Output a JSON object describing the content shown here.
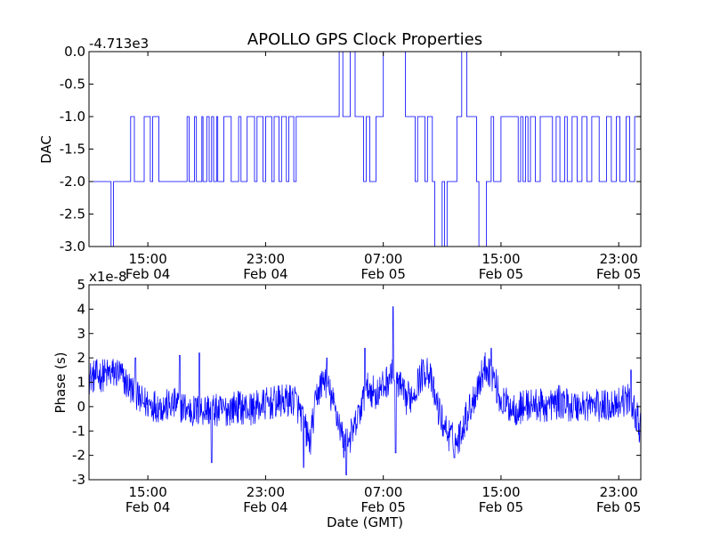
{
  "figure": {
    "title": "APOLLO GPS Clock Properties",
    "line_color": "#0000ff"
  },
  "chart_data": [
    {
      "type": "line",
      "title": "APOLLO GPS Clock Properties",
      "ylabel": "DAC",
      "xlabel": "",
      "offset_label": "-4.713e3",
      "ylim": [
        -3.0,
        0.0
      ],
      "xlim": [
        "Feb 04 11:00",
        "Feb 06 00:30"
      ],
      "yticks": [
        {
          "value": 0.0,
          "label": "0.0"
        },
        {
          "value": -0.5,
          "label": "-0.5"
        },
        {
          "value": -1.0,
          "label": "-1.0"
        },
        {
          "value": -1.5,
          "label": "-1.5"
        },
        {
          "value": -2.0,
          "label": "-2.0"
        },
        {
          "value": -2.5,
          "label": "-2.5"
        },
        {
          "value": -3.0,
          "label": "-3.0"
        }
      ],
      "xticks": [
        {
          "value": "Feb 04 15:00",
          "time": "15:00",
          "date": "Feb 04"
        },
        {
          "value": "Feb 04 23:00",
          "time": "23:00",
          "date": "Feb 04"
        },
        {
          "value": "Feb 05 07:00",
          "time": "07:00",
          "date": "Feb 05"
        },
        {
          "value": "Feb 05 15:00",
          "time": "15:00",
          "date": "Feb 05"
        },
        {
          "value": "Feb 05 23:00",
          "time": "23:00",
          "date": "Feb 05"
        }
      ],
      "series": [
        {
          "style": "step",
          "x": [
            "Feb 04 11:00",
            "Feb 04 12:30",
            "Feb 04 12:40",
            "Feb 04 13:50",
            "Feb 04 14:05",
            "Feb 04 14:45",
            "Feb 04 15:10",
            "Feb 04 15:20",
            "Feb 04 15:45",
            "Feb 04 17:40",
            "Feb 04 17:48",
            "Feb 04 18:10",
            "Feb 04 18:18",
            "Feb 04 18:40",
            "Feb 04 18:45",
            "Feb 04 19:00",
            "Feb 04 19:10",
            "Feb 04 19:20",
            "Feb 04 19:28",
            "Feb 04 19:40",
            "Feb 04 19:45",
            "Feb 04 20:10",
            "Feb 04 20:40",
            "Feb 04 21:10",
            "Feb 04 21:20",
            "Feb 04 21:45",
            "Feb 04 22:15",
            "Feb 04 22:25",
            "Feb 04 22:50",
            "Feb 04 23:00",
            "Feb 04 23:25",
            "Feb 04 23:35",
            "Feb 04 23:55",
            "Feb 05 00:05",
            "Feb 05 00:25",
            "Feb 05 00:35",
            "Feb 05 00:55",
            "Feb 05 01:05",
            "Feb 05 01:30",
            "Feb 05 02:00",
            "Feb 05 02:30",
            "Feb 05 03:10",
            "Feb 05 04:00",
            "Feb 05 04:15",
            "Feb 05 04:30",
            "Feb 05 04:45",
            "Feb 05 05:05",
            "Feb 05 05:40",
            "Feb 05 05:50",
            "Feb 05 06:05",
            "Feb 05 06:30",
            "Feb 05 07:00",
            "Feb 05 08:30",
            "Feb 05 09:10",
            "Feb 05 09:20",
            "Feb 05 09:50",
            "Feb 05 10:00",
            "Feb 05 10:20",
            "Feb 05 10:30",
            "Feb 05 11:00",
            "Feb 05 11:10",
            "Feb 05 11:20",
            "Feb 05 12:00",
            "Feb 05 12:20",
            "Feb 05 12:40",
            "Feb 05 13:20",
            "Feb 05 13:30",
            "Feb 05 14:00",
            "Feb 05 14:20",
            "Feb 05 14:30",
            "Feb 05 15:00",
            "Feb 05 16:10",
            "Feb 05 16:20",
            "Feb 05 16:30",
            "Feb 05 16:40",
            "Feb 05 16:50",
            "Feb 05 17:00",
            "Feb 05 17:20",
            "Feb 05 17:40",
            "Feb 05 18:30",
            "Feb 05 18:45",
            "Feb 05 19:00",
            "Feb 05 19:20",
            "Feb 05 19:30",
            "Feb 05 19:50",
            "Feb 05 20:10",
            "Feb 05 20:30",
            "Feb 05 20:50",
            "Feb 05 21:10",
            "Feb 05 21:40",
            "Feb 05 22:10",
            "Feb 05 22:30",
            "Feb 05 22:50",
            "Feb 05 23:05",
            "Feb 05 23:30",
            "Feb 05 23:45",
            "Feb 06 00:05"
          ],
          "y": [
            -2,
            -3,
            -2,
            -1,
            -2,
            -1,
            -2,
            -1,
            -2,
            -1,
            -2,
            -1,
            -2,
            -1,
            -2,
            -1,
            -2,
            -1,
            -2,
            -1,
            -2,
            -1,
            -2,
            -1,
            -2,
            -1,
            -2,
            -1,
            -2,
            -1,
            -2,
            -1,
            -2,
            -1,
            -2,
            -1,
            -2,
            -1,
            -1,
            -1,
            -1,
            -1,
            0,
            -1,
            -1,
            0,
            -1,
            -2,
            -1,
            -2,
            -1,
            0,
            -1,
            -2,
            -1,
            -2,
            -1,
            -2,
            -3,
            -2,
            -3,
            -2,
            -1,
            0,
            -1,
            -2,
            -3,
            -2,
            -1,
            -2,
            -1,
            -2,
            -1,
            -2,
            -1,
            -2,
            -1,
            -2,
            -1,
            -2,
            -1,
            -2,
            -1,
            -2,
            -1,
            -2,
            -1,
            -2,
            -1,
            -2,
            -1,
            -2,
            -1,
            -2,
            -1,
            -2,
            -1
          ]
        }
      ]
    },
    {
      "type": "line",
      "xlabel": "Date (GMT)",
      "ylabel": "Phase (s)",
      "offset_label": "x1e-8",
      "ylim": [
        -3,
        5
      ],
      "xlim": [
        "Feb 04 11:00",
        "Feb 06 00:30"
      ],
      "yticks": [
        {
          "value": 5,
          "label": "5"
        },
        {
          "value": 4,
          "label": "4"
        },
        {
          "value": 3,
          "label": "3"
        },
        {
          "value": 2,
          "label": "2"
        },
        {
          "value": 1,
          "label": "1"
        },
        {
          "value": 0,
          "label": "0"
        },
        {
          "value": -1,
          "label": "-1"
        },
        {
          "value": -2,
          "label": "-2"
        },
        {
          "value": -3,
          "label": "-3"
        }
      ],
      "xticks": [
        {
          "value": "Feb 04 15:00",
          "time": "15:00",
          "date": "Feb 04"
        },
        {
          "value": "Feb 04 23:00",
          "time": "23:00",
          "date": "Feb 04"
        },
        {
          "value": "Feb 05 07:00",
          "time": "07:00",
          "date": "Feb 05"
        },
        {
          "value": "Feb 05 15:00",
          "time": "15:00",
          "date": "Feb 05"
        },
        {
          "value": "Feb 05 23:00",
          "time": "23:00",
          "date": "Feb 05"
        }
      ],
      "series": [
        {
          "style": "noisy",
          "x": [
            "Feb 04 11:00",
            "Feb 04 12:00",
            "Feb 04 13:00",
            "Feb 04 13:30",
            "Feb 04 14:30",
            "Feb 04 16:00",
            "Feb 04 17:00",
            "Feb 04 18:00",
            "Feb 04 19:00",
            "Feb 04 20:00",
            "Feb 04 21:00",
            "Feb 04 22:00",
            "Feb 04 23:00",
            "Feb 05 00:00",
            "Feb 05 01:00",
            "Feb 05 01:30",
            "Feb 05 02:00",
            "Feb 05 02:30",
            "Feb 05 03:00",
            "Feb 05 03:30",
            "Feb 05 04:00",
            "Feb 05 04:20",
            "Feb 05 05:00",
            "Feb 05 05:30",
            "Feb 05 06:00",
            "Feb 05 06:30",
            "Feb 05 07:00",
            "Feb 05 07:30",
            "Feb 05 08:00",
            "Feb 05 08:30",
            "Feb 05 09:00",
            "Feb 05 09:30",
            "Feb 05 10:00",
            "Feb 05 10:30",
            "Feb 05 11:00",
            "Feb 05 11:30",
            "Feb 05 12:00",
            "Feb 05 12:30",
            "Feb 05 13:00",
            "Feb 05 13:30",
            "Feb 05 14:00",
            "Feb 05 14:30",
            "Feb 05 15:00",
            "Feb 05 16:00",
            "Feb 05 17:00",
            "Feb 05 18:00",
            "Feb 05 19:00",
            "Feb 05 20:00",
            "Feb 05 21:00",
            "Feb 05 22:00",
            "Feb 05 23:00",
            "Feb 05 23:30",
            "Feb 06 00:00",
            "Feb 06 00:30"
          ],
          "y": [
            1.2,
            1.3,
            1.4,
            1.0,
            0.2,
            0.0,
            0.1,
            -0.2,
            -0.1,
            -0.2,
            0.0,
            -0.1,
            0.1,
            0.2,
            0.3,
            -0.5,
            -1.5,
            0.5,
            1.2,
            0.3,
            -0.6,
            -1.6,
            -1.0,
            0.0,
            0.8,
            0.5,
            0.8,
            1.3,
            1.0,
            0.3,
            0.5,
            1.2,
            1.6,
            0.4,
            -0.6,
            -1.2,
            -1.5,
            -0.6,
            0.1,
            1.0,
            1.7,
            1.2,
            0.2,
            -0.1,
            0.1,
            0.0,
            0.2,
            0.0,
            0.1,
            0.0,
            0.2,
            0.3,
            0.0,
            -1.0
          ],
          "spikes": [
            {
              "x": "Feb 04 14:10",
              "y": 2.0
            },
            {
              "x": "Feb 04 17:10",
              "y": 2.1
            },
            {
              "x": "Feb 04 18:30",
              "y": 2.2
            },
            {
              "x": "Feb 04 19:20",
              "y": -2.3
            },
            {
              "x": "Feb 05 01:35",
              "y": -2.5
            },
            {
              "x": "Feb 05 03:10",
              "y": 2.0
            },
            {
              "x": "Feb 05 04:30",
              "y": -2.8
            },
            {
              "x": "Feb 05 05:45",
              "y": 2.4
            },
            {
              "x": "Feb 05 07:40",
              "y": 4.1
            },
            {
              "x": "Feb 05 07:50",
              "y": -1.9
            },
            {
              "x": "Feb 05 11:50",
              "y": -2.1
            },
            {
              "x": "Feb 05 14:20",
              "y": 2.4
            },
            {
              "x": "Feb 05 23:50",
              "y": 1.5
            }
          ]
        }
      ]
    }
  ]
}
